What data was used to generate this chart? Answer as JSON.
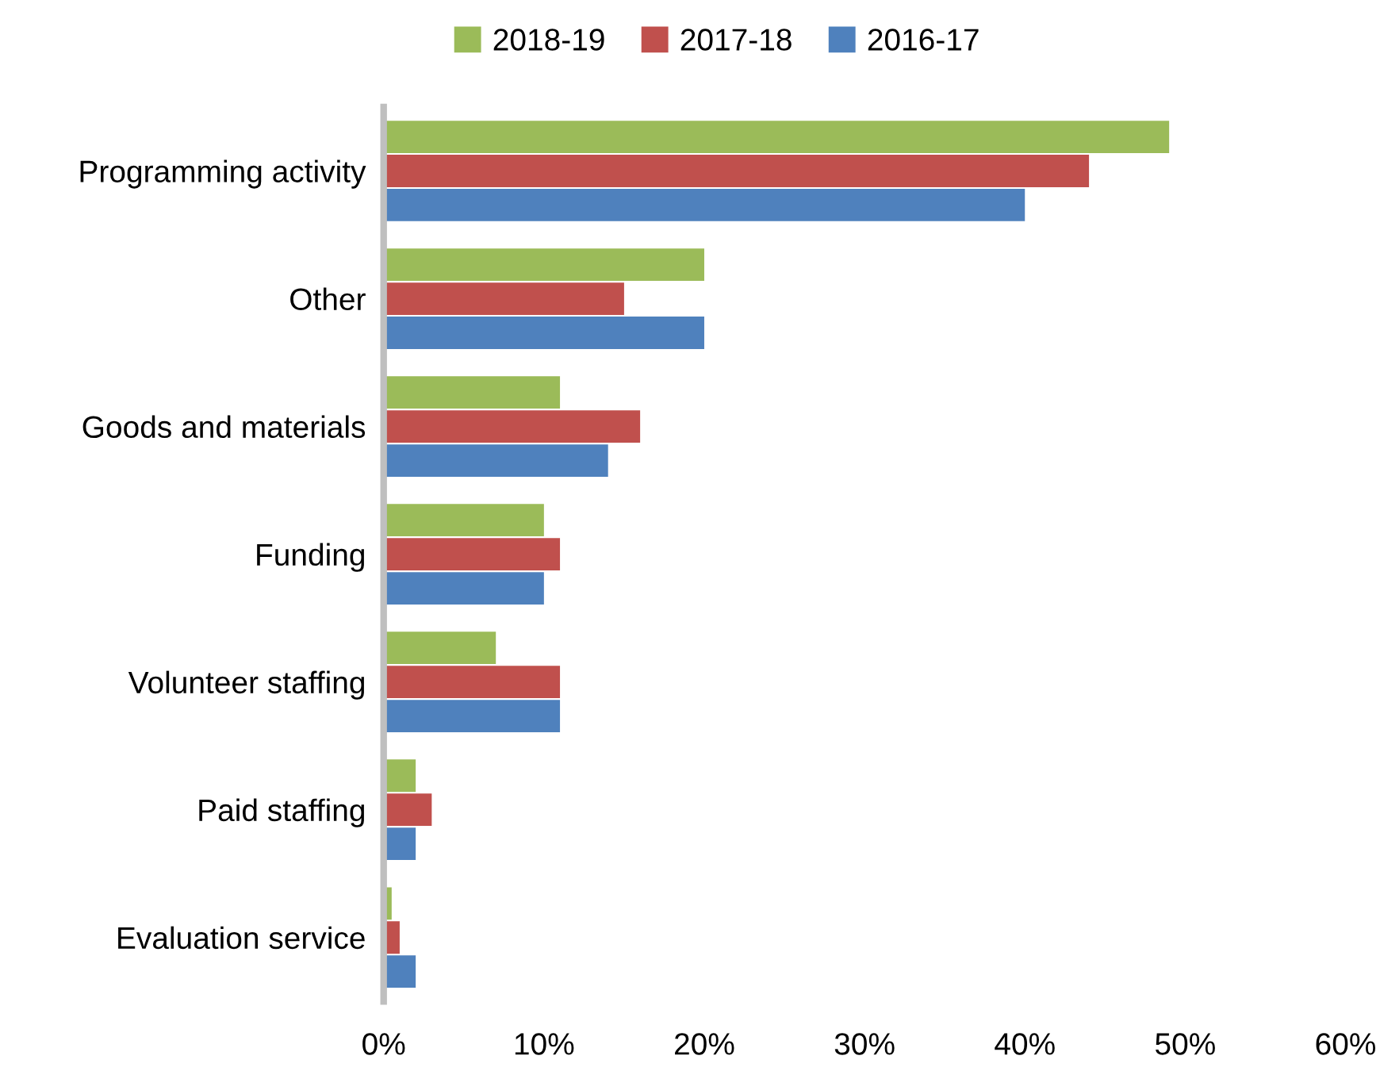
{
  "chart_data": {
    "type": "bar",
    "orientation": "horizontal",
    "categories": [
      "Programming activity",
      "Other",
      "Goods and materials",
      "Funding",
      "Volunteer staffing",
      "Paid staffing",
      "Evaluation service"
    ],
    "series": [
      {
        "name": "2018-19",
        "color": "#9bbb59",
        "values": [
          49,
          20,
          11,
          10,
          7,
          2,
          0.5
        ]
      },
      {
        "name": "2017-18",
        "color": "#c0504d",
        "values": [
          44,
          15,
          16,
          11,
          11,
          3,
          1
        ]
      },
      {
        "name": "2016-17",
        "color": "#4f81bd",
        "values": [
          40,
          20,
          14,
          10,
          11,
          2,
          2
        ]
      }
    ],
    "xlim": [
      0,
      60
    ],
    "xticks": [
      {
        "value": 0,
        "label": "0%"
      },
      {
        "value": 10,
        "label": "10%"
      },
      {
        "value": 20,
        "label": "20%"
      },
      {
        "value": 30,
        "label": "30%"
      },
      {
        "value": 40,
        "label": "40%"
      },
      {
        "value": 50,
        "label": "50%"
      },
      {
        "value": 60,
        "label": "60%"
      }
    ],
    "grid": false,
    "legend": "top"
  }
}
